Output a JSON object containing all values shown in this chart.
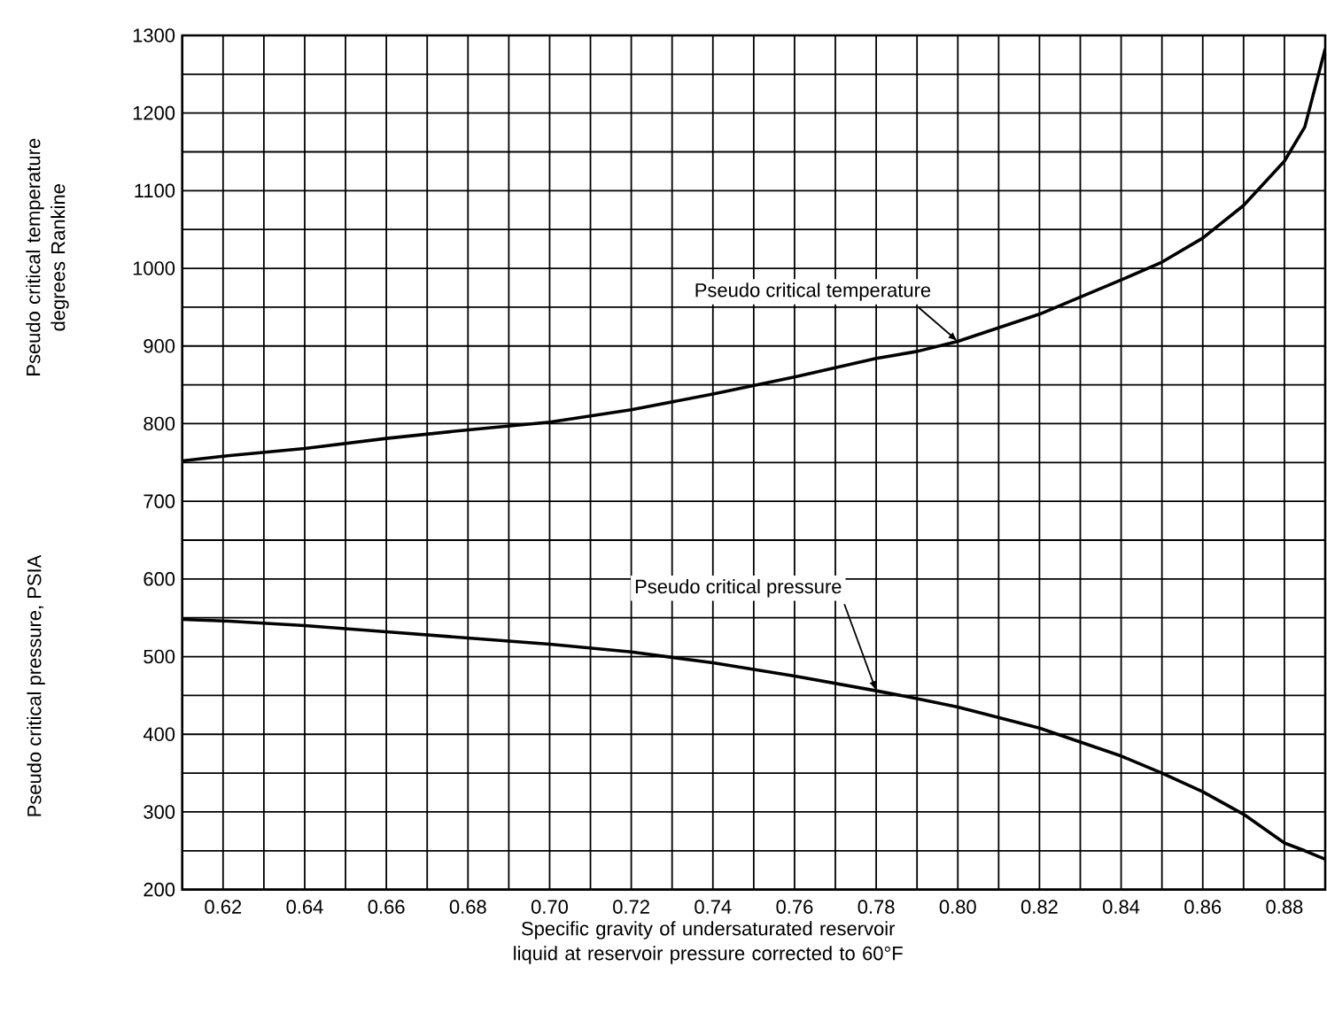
{
  "chart_data": {
    "type": "line",
    "xlabel": "Specific gravity of undersaturated reservoir liquid at reservoir pressure corrected to 60°F",
    "ylabel": "Pseudo critical temperature degrees Rankine",
    "x": [
      0.61,
      0.62,
      0.64,
      0.66,
      0.68,
      0.7,
      0.72,
      0.74,
      0.76,
      0.78,
      0.79,
      0.8,
      0.82,
      0.84,
      0.85,
      0.86,
      0.87,
      0.88,
      0.885,
      0.89
    ],
    "series": [
      {
        "name": "Pseudo critical temperature",
        "color": "#000000",
        "values": [
          752,
          758,
          768,
          781,
          792,
          802,
          818,
          838,
          860,
          884,
          893,
          906,
          941,
          985,
          1008,
          1039,
          1081,
          1138,
          1182,
          1283
        ]
      },
      {
        "name": "Pseudo critical pressure",
        "color": "#000000",
        "values": [
          548,
          546,
          540,
          532,
          524,
          516,
          506,
          492,
          475,
          456,
          446,
          435,
          408,
          372,
          350,
          326,
          297,
          260,
          250,
          239
        ]
      }
    ],
    "annotations": [
      "Pseudo critical pressure, PSIA"
    ],
    "xlim": [
      0.61,
      0.89
    ],
    "xticks": [
      {
        "value": 0.61,
        "label": null
      },
      0.62,
      {
        "value": 0.63,
        "label": null
      },
      0.64,
      {
        "value": 0.65,
        "label": null
      },
      0.66,
      {
        "value": 0.67,
        "label": null
      },
      0.68,
      {
        "value": 0.69,
        "label": null
      },
      {
        "value": 0.7,
        "label": "0.70"
      },
      {
        "value": 0.71,
        "label": null
      },
      0.72,
      {
        "value": 0.73,
        "label": null
      },
      0.74,
      {
        "value": 0.75,
        "label": null
      },
      0.76,
      {
        "value": 0.77,
        "label": null
      },
      0.78,
      {
        "value": 0.79,
        "label": null
      },
      {
        "value": 0.8,
        "label": "0.80"
      },
      {
        "value": 0.81,
        "label": null
      },
      0.82,
      {
        "value": 0.83,
        "label": null
      },
      0.84,
      {
        "value": 0.85,
        "label": null
      },
      0.86,
      {
        "value": 0.87,
        "label": null
      },
      0.88,
      {
        "value": 0.89,
        "label": null
      }
    ],
    "ylim": [
      200,
      1300
    ],
    "yticks": [
      200,
      {
        "value": 250,
        "label": null
      },
      300,
      {
        "value": 350,
        "label": null
      },
      400,
      {
        "value": 450,
        "label": null
      },
      500,
      {
        "value": 550,
        "label": null
      },
      600,
      {
        "value": 650,
        "label": null
      },
      700,
      {
        "value": 750,
        "label": null
      },
      800,
      {
        "value": 850,
        "label": null
      },
      900,
      {
        "value": 950,
        "label": null
      },
      1000,
      {
        "value": 1050,
        "label": null
      },
      1100,
      {
        "value": 1150,
        "label": null
      },
      1200,
      {
        "value": 1250,
        "label": null
      },
      1300
    ],
    "grid": true,
    "line_style": "solid"
  }
}
